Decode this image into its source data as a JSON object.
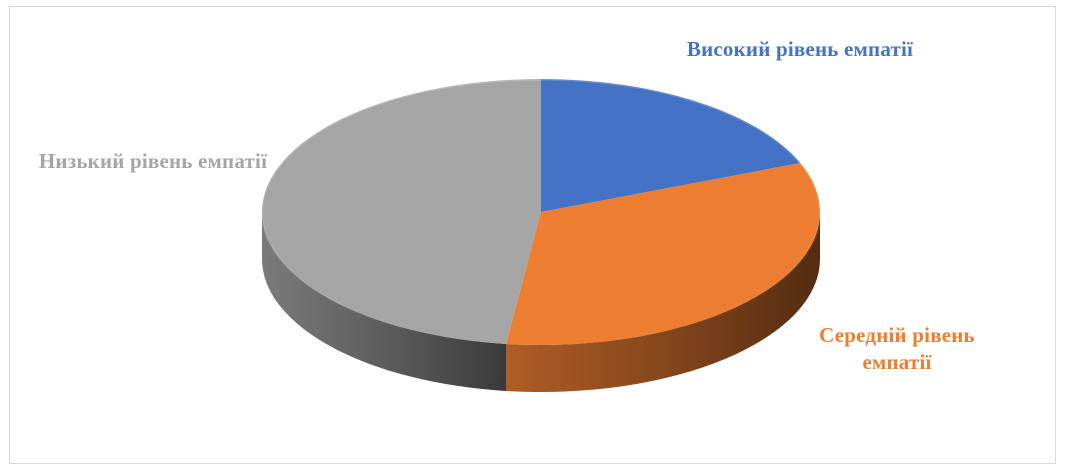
{
  "chart_data": {
    "type": "pie",
    "style": "3d",
    "title": "",
    "slices": [
      {
        "label": "Високий рівень емпатії",
        "value": 19,
        "color": "#4472C4",
        "label_color": "#4472C4"
      },
      {
        "label": "Середній рівень емпатії",
        "value": 33,
        "color": "#ED7D31",
        "label_color": "#ED7D31"
      },
      {
        "label": "Низький рівень емпатії",
        "value": 48,
        "color": "#A5A5A5",
        "label_color": "#A5A5A5"
      }
    ],
    "legend": "none"
  }
}
